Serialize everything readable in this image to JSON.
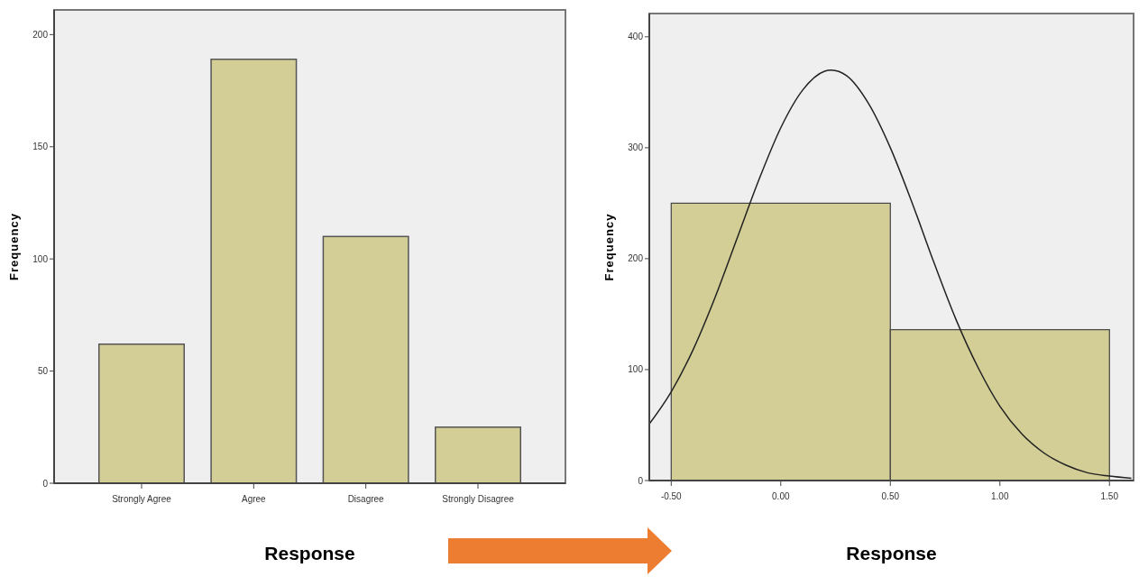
{
  "chart_data": [
    {
      "type": "bar",
      "xlabel": "Response",
      "ylabel": "Frequency",
      "categories": [
        "Strongly Agree",
        "Agree",
        "Disagree",
        "Strongly Disagree"
      ],
      "values": [
        62,
        189,
        110,
        25
      ],
      "color": "#d3cd96",
      "ylim": [
        0,
        211
      ],
      "yticks": [
        0,
        50,
        100,
        150,
        200
      ]
    },
    {
      "type": "histogram",
      "xlabel": "Response",
      "ylabel": "Frequency",
      "xlim": [
        -0.6,
        1.61
      ],
      "xticks": [
        {
          "value": -0.5,
          "label": "-0.50"
        },
        {
          "value": 0,
          "label": "0.00"
        },
        {
          "value": 0.5,
          "label": "0.50"
        },
        {
          "value": 1,
          "label": "1.00"
        },
        {
          "value": 1.5,
          "label": "1.50"
        }
      ],
      "ylim": [
        0,
        421
      ],
      "yticks": [
        0,
        100,
        200,
        300,
        400
      ],
      "series": [
        {
          "type": "histogram",
          "bins": [
            -0.5,
            0.5,
            1.5
          ],
          "values": [
            250,
            136
          ],
          "color": "#d3cd96"
        },
        {
          "type": "line",
          "color": "#222222",
          "x": [
            -0.6,
            -0.5,
            -0.4,
            -0.3,
            -0.2,
            -0.1,
            0,
            0.1,
            0.2,
            0.23,
            0.3,
            0.4,
            0.5,
            0.6,
            0.7,
            0.8,
            0.9,
            1.0,
            1.1,
            1.2,
            1.3,
            1.4,
            1.5,
            1.6
          ],
          "values": [
            51,
            80,
            118,
            165,
            218,
            271,
            318,
            352,
            369,
            370,
            365,
            340,
            300,
            250,
            196,
            145,
            102,
            67,
            42,
            25,
            14,
            7,
            4,
            2
          ]
        }
      ]
    }
  ]
}
